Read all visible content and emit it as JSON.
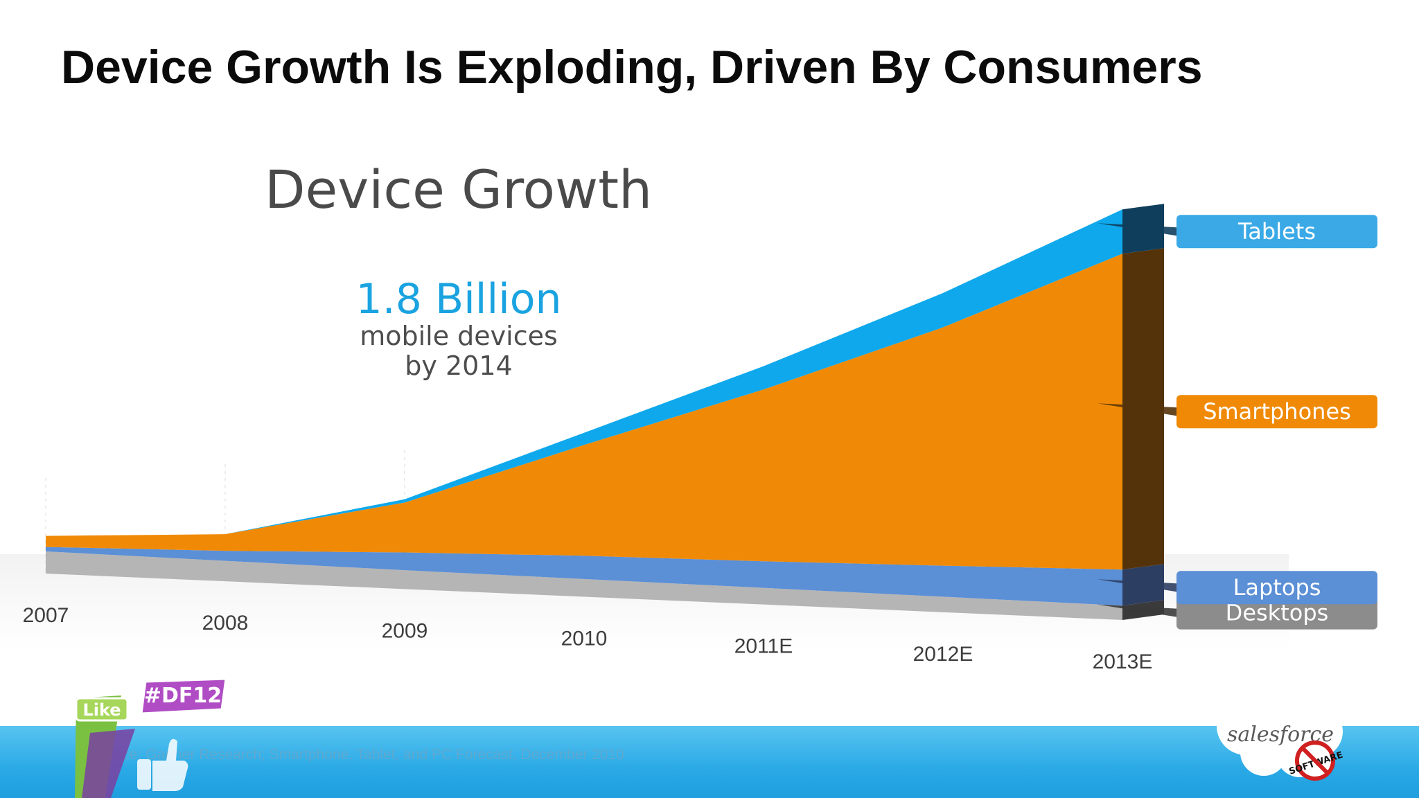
{
  "slide": {
    "title": "Device Growth Is Exploding, Driven By Consumers",
    "source": "Source: Gartner Research; Smartphone, Tablet, and PC Forecast, December 2010"
  },
  "callout": {
    "value": "1.8 Billion",
    "line1": "mobile devices",
    "line2": "by 2014"
  },
  "badge": {
    "like_text": "Like",
    "hashtag": "#DF12",
    "icon": "thumbs-up-icon"
  },
  "logo": {
    "brand": "salesforce",
    "stamp": "SOFTWARE",
    "icon": "no-software-icon"
  },
  "colors": {
    "tablets": "#0fa8ec",
    "smartphones": "#f08a06",
    "laptops": "#5b8fd6",
    "desktops": "#b5b5b5",
    "footer": "#2aa9e6"
  },
  "chart_data": {
    "type": "area",
    "title": "Device Growth",
    "stacked": true,
    "categories": [
      "2007",
      "2008",
      "2009",
      "2010",
      "2011E",
      "2012E",
      "2013E"
    ],
    "series": [
      {
        "name": "Desktops",
        "values": [
          0.4,
          0.37,
          0.34,
          0.32,
          0.3,
          0.28,
          0.26
        ]
      },
      {
        "name": "Laptops",
        "values": [
          0.08,
          0.18,
          0.32,
          0.42,
          0.48,
          0.56,
          0.65
        ]
      },
      {
        "name": "Smartphones",
        "values": [
          0.2,
          0.3,
          0.9,
          2.0,
          3.1,
          4.3,
          5.7
        ]
      },
      {
        "name": "Tablets",
        "values": [
          0.0,
          0.0,
          0.06,
          0.22,
          0.42,
          0.62,
          0.8
        ]
      }
    ],
    "legend": {
      "placement": "right"
    },
    "grid": false
  }
}
